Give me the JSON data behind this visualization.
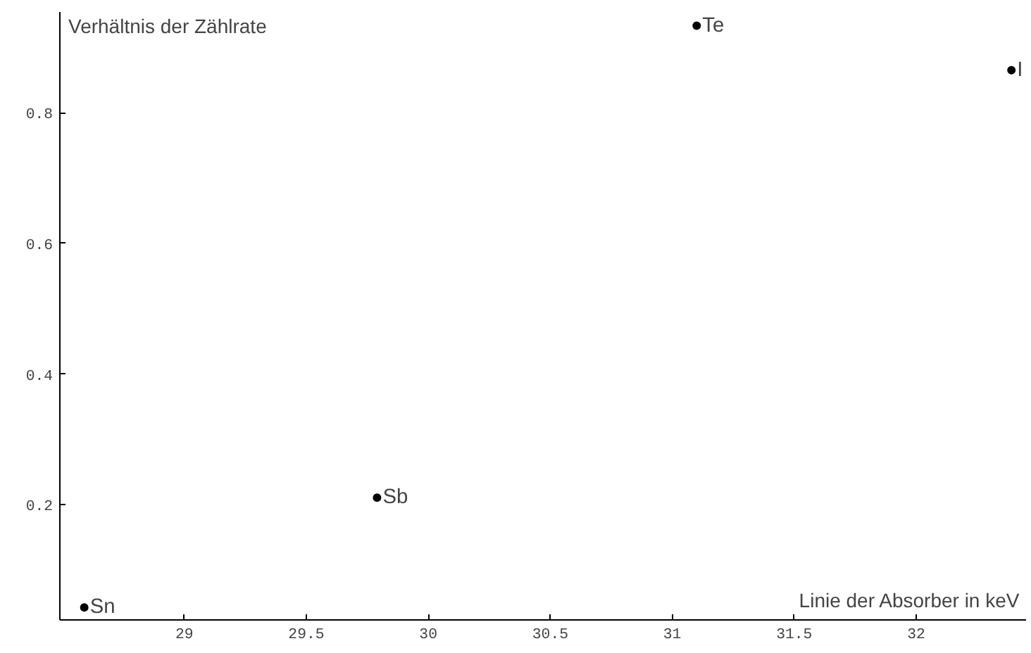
{
  "chart_data": {
    "type": "scatter",
    "xlabel": "Linie der Absorber in keV",
    "ylabel": "Verhältnis der Zählrate",
    "x": [
      28.59,
      29.79,
      31.1,
      32.39
    ],
    "series": [
      {
        "color": "#000000",
        "values": [
          0.043,
          0.211,
          0.933,
          0.865
        ]
      }
    ],
    "annotations": [
      {
        "text": "Sn",
        "x": 28.59,
        "y": 0.043
      },
      {
        "text": "Sb",
        "x": 29.79,
        "y": 0.211
      },
      {
        "text": "Te",
        "x": 31.1,
        "y": 0.933
      },
      {
        "text": "I",
        "x": 32.39,
        "y": 0.865
      }
    ],
    "xlim": [
      28.49,
      32.45
    ],
    "ylim": [
      0.024,
      0.954
    ],
    "xticks": [
      29,
      29.5,
      30,
      30.5,
      31,
      31.5,
      32
    ],
    "yticks": [
      0.2,
      0.4,
      0.6,
      0.8
    ],
    "marker": "circle",
    "grid": false
  }
}
